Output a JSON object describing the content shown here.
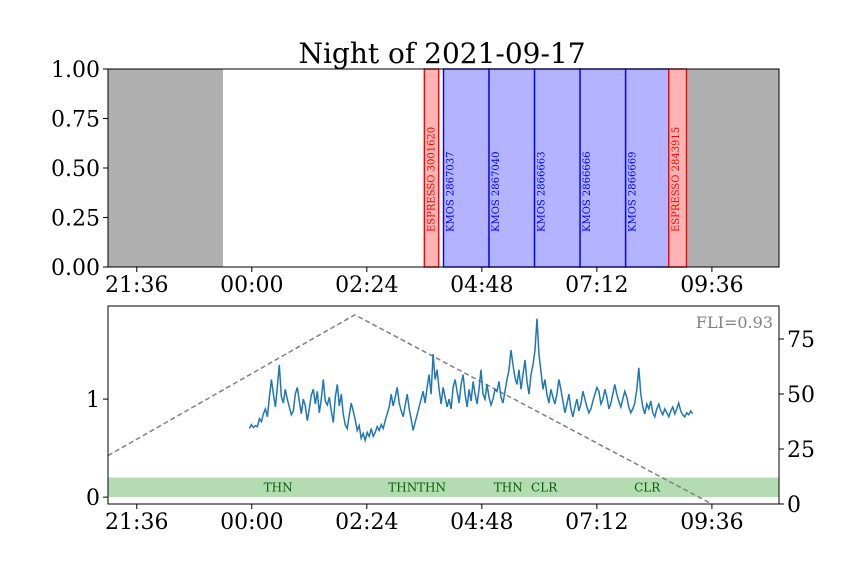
{
  "chart_data": [
    {
      "type": "timeline",
      "title": "Night of 2021-09-17",
      "x_ticks": [
        "21:36",
        "00:00",
        "02:24",
        "04:48",
        "07:12",
        "09:36"
      ],
      "x_tick_hours": [
        21.6,
        24.0,
        26.4,
        28.8,
        31.2,
        33.6
      ],
      "xlim_hours": [
        21.0,
        35.0
      ],
      "ylim": [
        0,
        1
      ],
      "y_ticks": [
        "0.00",
        "0.25",
        "0.50",
        "0.75",
        "1.00"
      ],
      "grey_regions_hours": [
        [
          21.0,
          23.4
        ],
        [
          32.85,
          35.0
        ]
      ],
      "observations": [
        {
          "label": "ESPRESSO 3001620",
          "instrument": "ESPRESSO",
          "start": 27.6,
          "end": 27.9,
          "color": "#ff0000"
        },
        {
          "label": "KMOS 2867037",
          "instrument": "KMOS",
          "start": 28.0,
          "end": 28.95,
          "color": "#0000ff"
        },
        {
          "label": "KMOS 2867040",
          "instrument": "KMOS",
          "start": 28.95,
          "end": 29.9,
          "color": "#0000ff"
        },
        {
          "label": "KMOS 2866663",
          "instrument": "KMOS",
          "start": 29.9,
          "end": 30.85,
          "color": "#0000ff"
        },
        {
          "label": "KMOS 2866666",
          "instrument": "KMOS",
          "start": 30.85,
          "end": 31.8,
          "color": "#0000ff"
        },
        {
          "label": "KMOS 2866669",
          "instrument": "KMOS",
          "start": 31.8,
          "end": 32.7,
          "color": "#0000ff"
        },
        {
          "label": "ESPRESSO 2843915",
          "instrument": "ESPRESSO",
          "start": 32.7,
          "end": 33.07,
          "color": "#ff0000"
        }
      ]
    },
    {
      "type": "line",
      "xlim_hours": [
        21.0,
        35.0
      ],
      "x_ticks": [
        "21:36",
        "00:00",
        "02:24",
        "04:48",
        "07:12",
        "09:36"
      ],
      "left_ylim": [
        -0.07,
        1.95
      ],
      "left_y_ticks": [
        0,
        1
      ],
      "right_ylim": [
        0,
        90
      ],
      "right_y_ticks": [
        0,
        25,
        50,
        75
      ],
      "annotation": "FLI=0.93",
      "seeing_series": {
        "color": "#1f77b4",
        "x_range_hours": [
          23.95,
          33.2
        ],
        "values": [
          0.7,
          0.74,
          0.71,
          0.73,
          0.72,
          0.8,
          0.77,
          0.85,
          0.9,
          0.82,
          1.02,
          1.2,
          1.05,
          0.92,
          1.12,
          1.35,
          1.03,
          0.96,
          1.1,
          1.0,
          0.92,
          0.84,
          0.88,
          1.05,
          1.12,
          0.98,
          0.85,
          1.0,
          0.93,
          0.78,
          0.9,
          1.04,
          1.1,
          0.95,
          1.08,
          0.86,
          1.0,
          1.2,
          0.98,
          0.94,
          1.02,
          0.88,
          0.76,
          1.02,
          1.15,
          0.93,
          1.05,
          0.85,
          0.74,
          0.7,
          0.83,
          0.96,
          0.88,
          0.79,
          0.68,
          0.73,
          0.6,
          0.65,
          0.58,
          0.66,
          0.62,
          0.7,
          0.62,
          0.66,
          0.72,
          0.68,
          0.74,
          0.7,
          0.78,
          0.85,
          0.92,
          1.05,
          0.93,
          1.02,
          1.12,
          0.96,
          0.88,
          0.82,
          0.94,
          1.05,
          0.9,
          0.8,
          0.68,
          0.76,
          0.84,
          0.92,
          1.0,
          1.08,
          0.96,
          1.12,
          1.25,
          1.05,
          1.46,
          1.2,
          1.3,
          1.1,
          0.95,
          1.12,
          1.02,
          0.92,
          1.0,
          0.9,
          1.12,
          1.2,
          1.08,
          0.96,
          1.15,
          1.25,
          1.05,
          0.92,
          1.1,
          0.98,
          1.18,
          1.05,
          0.95,
          1.1,
          1.3,
          1.05,
          1.0,
          1.15,
          1.02,
          0.94,
          1.0,
          1.1,
          1.08,
          1.18,
          1.02,
          0.96,
          1.08,
          1.2,
          1.3,
          1.5,
          1.35,
          1.22,
          1.15,
          1.3,
          1.1,
          1.25,
          1.4,
          1.18,
          1.05,
          1.25,
          1.35,
          1.5,
          1.82,
          1.45,
          1.28,
          1.1,
          1.2,
          1.05,
          0.96,
          1.1,
          1.02,
          0.95,
          1.05,
          1.2,
          1.1,
          0.98,
          0.86,
          0.95,
          1.05,
          0.9,
          0.82,
          0.92,
          1.0,
          0.88,
          0.95,
          1.08,
          1.0,
          0.92,
          0.86,
          0.9,
          0.98,
          1.05,
          1.12,
          1.08,
          0.95,
          1.0,
          1.1,
          1.02,
          0.9,
          0.96,
          1.05,
          1.15,
          1.05,
          0.98,
          0.92,
          1.0,
          1.08,
          1.02,
          0.92,
          0.86,
          0.9,
          0.96,
          1.1,
          1.32,
          1.05,
          0.92,
          0.85,
          0.95,
          0.9,
          0.98,
          0.86,
          0.82,
          0.9,
          0.95,
          0.88,
          0.84,
          0.9,
          0.86,
          0.82,
          0.88,
          0.92,
          0.85,
          0.9,
          0.96,
          0.88,
          0.84,
          0.82,
          0.86,
          0.84,
          0.88,
          0.85
        ]
      },
      "altitude_series": {
        "color": "#808080",
        "style": "dashed",
        "points_hours": [
          [
            21.0,
            22
          ],
          [
            26.15,
            86
          ],
          [
            33.6,
            0
          ]
        ]
      },
      "weather_band": {
        "color": "#b3dcb3",
        "y_range": [
          0,
          0.2
        ],
        "labels": [
          {
            "text": "THN",
            "hour": 24.55
          },
          {
            "text": "THN",
            "hour": 27.15
          },
          {
            "text": "THN",
            "hour": 27.75
          },
          {
            "text": "THN",
            "hour": 29.35
          },
          {
            "text": "CLR",
            "hour": 30.1
          },
          {
            "text": "CLR",
            "hour": 32.25
          }
        ]
      }
    }
  ]
}
